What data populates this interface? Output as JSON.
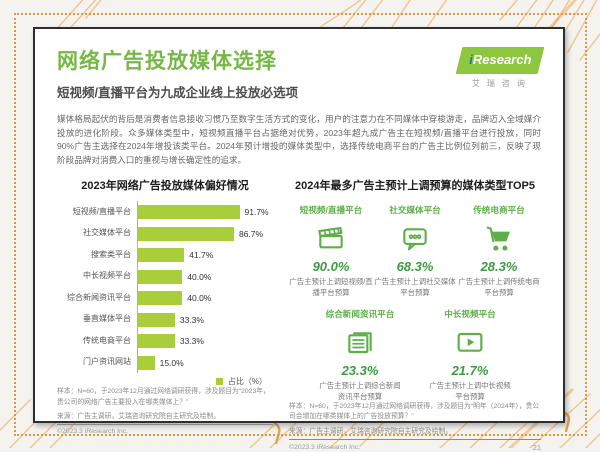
{
  "page": {
    "title": "网络广告投放媒体选择",
    "subtitle": "短视频/直播平台为九成企业线上投放必选项",
    "intro": "媒体格局起伏的背后是消费者信息接收习惯乃至数字生活方式的变化，用户的注意力在不同媒体中穿梭游走，品牌迈入全域媒介投放的进化阶段。众多媒体类型中，短视频直播平台占据绝对优势，2023年超九成广告主在短视频/直播平台进行投放，同时90%广告主选择在2024年增投该类平台。2024年预计增投的媒体类型中，选择传统电商平台的广告主比例位列前三，反映了现阶段品牌对消费入口的重视与增长确定性的追求。",
    "copyright": "©2023.3 iResearch Inc.",
    "page_number": "21"
  },
  "logo": {
    "brand_i": "i",
    "brand_rest": "Research",
    "brand_cn": "艾瑞咨询"
  },
  "colors": {
    "brand_green": "#76b845",
    "bar_green": "#a9ce39",
    "percent_green": "#3d9b3f",
    "accent_orange": "#de9640"
  },
  "chart_data": {
    "type": "bar",
    "orientation": "horizontal",
    "title": "2023年网络广告投放媒体偏好情况",
    "categories": [
      "短视频/直播平台",
      "社交媒体平台",
      "搜索类平台",
      "中长视频平台",
      "综合新闻资讯平台",
      "垂直媒体平台",
      "传统电商平台",
      "门户资讯网站"
    ],
    "values": [
      91.7,
      86.7,
      41.7,
      40.0,
      40.0,
      33.3,
      33.3,
      15.0
    ],
    "value_labels": [
      "91.7%",
      "86.7%",
      "41.7%",
      "40.0%",
      "40.0%",
      "33.3%",
      "33.3%",
      "15.0%"
    ],
    "xlim": [
      0,
      100
    ],
    "legend": "占比（%）",
    "legend_position": "bottom-right",
    "note": "样本：N=60，于2023年12月通过网络调研获得，涉及题目为“2023年，贵公司的网络广告主要投入在哪类媒体上？”",
    "source": "来源：广告主调研，艾瑞咨询研究院自主研究及绘制。"
  },
  "top5": {
    "title": "2024年最多广告主预计上调预算的媒体类型TOP5",
    "items": [
      {
        "label": "短视频/直播平台",
        "icon": "clapperboard-icon",
        "percent": "90.0%",
        "caption": "广告主预计上调短视频/直播平台预算"
      },
      {
        "label": "社交媒体平台",
        "icon": "chat-bubble-icon",
        "percent": "68.3%",
        "caption": "广告主预计上调社交媒体平台预算"
      },
      {
        "label": "传统电商平台",
        "icon": "shopping-cart-icon",
        "percent": "28.3%",
        "caption": "广告主预计上调传统电商平台预算"
      },
      {
        "label": "综合新闻资讯平台",
        "icon": "newspaper-icon",
        "percent": "23.3%",
        "caption": "广告主预计上调综合新闻资讯平台预算"
      },
      {
        "label": "中长视频平台",
        "icon": "video-player-icon",
        "percent": "21.7%",
        "caption": "广告主预计上调中长视频平台预算"
      }
    ],
    "note": "样本：N=60，于2023年12月通过网络调研获得，涉及题目为“明年（2024年），贵公司会增加在哪类媒体上的广告投放预算？”",
    "source": "来源：广告主调研，艾瑞咨询研究院自主研究及绘制。"
  }
}
